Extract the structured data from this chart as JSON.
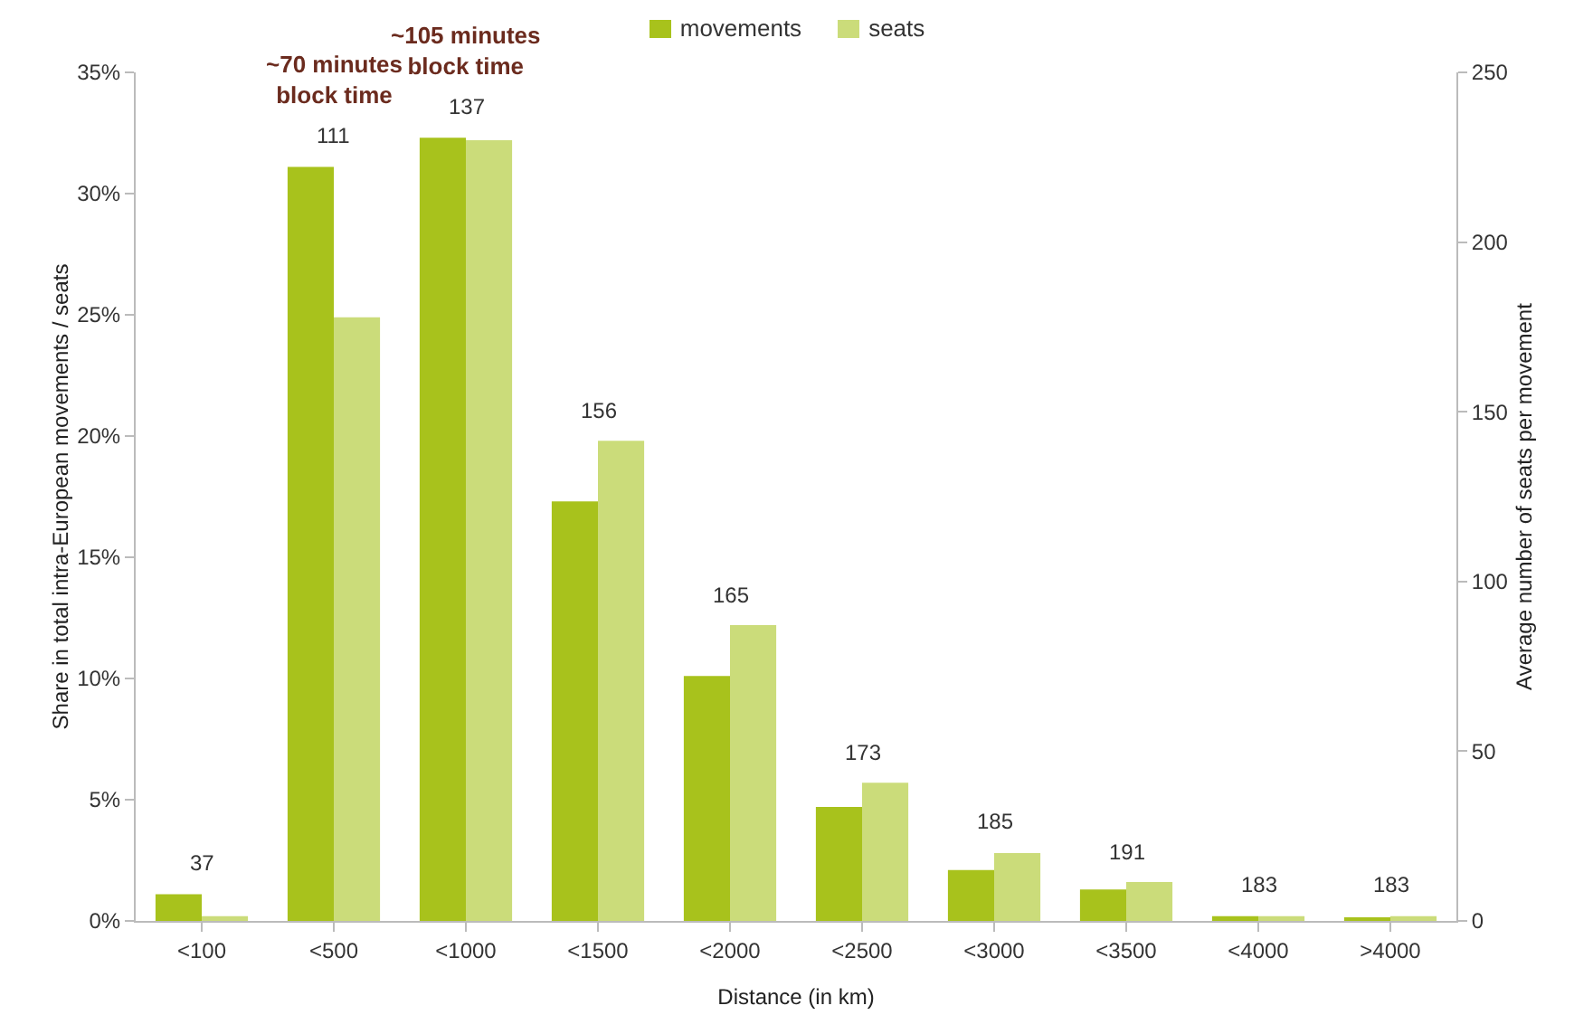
{
  "chart_data": {
    "type": "bar",
    "categories": [
      "<100",
      "<500",
      "<1000",
      "<1500",
      "<2000",
      "<2500",
      "<3000",
      "<3500",
      "<4000",
      ">4000"
    ],
    "series": [
      {
        "name": "movements",
        "color": "#a8c21c",
        "values": [
          1.1,
          31.1,
          32.3,
          17.3,
          10.1,
          4.7,
          2.1,
          1.3,
          0.2,
          0.1
        ]
      },
      {
        "name": "seats",
        "color": "#cbdc7a",
        "values": [
          0.2,
          24.9,
          32.2,
          19.8,
          12.2,
          5.7,
          2.8,
          1.6,
          0.2,
          0.2
        ]
      }
    ],
    "xlabel": "Distance (in km)",
    "ylabel": "Share in total intra-European movements / seats",
    "y2label": "Average number of seats per movement",
    "ylim": [
      0,
      35
    ],
    "yticks": [
      {
        "value": 0,
        "label": "0%"
      },
      {
        "value": 5,
        "label": "5%"
      },
      {
        "value": 10,
        "label": "10%"
      },
      {
        "value": 15,
        "label": "15%"
      },
      {
        "value": 20,
        "label": "20%"
      },
      {
        "value": 25,
        "label": "25%"
      },
      {
        "value": 30,
        "label": "30%"
      },
      {
        "value": 35,
        "label": "35%"
      }
    ],
    "y2lim": [
      0,
      250
    ],
    "y2ticks": [
      0,
      50,
      100,
      150,
      200,
      250
    ],
    "annotations": [
      "37",
      "111",
      "137",
      "156",
      "165",
      "173",
      "185",
      "191",
      "183",
      "183",
      "~70 minutes block time",
      "~105 minutes block time"
    ],
    "grid": false,
    "legend": "top"
  }
}
